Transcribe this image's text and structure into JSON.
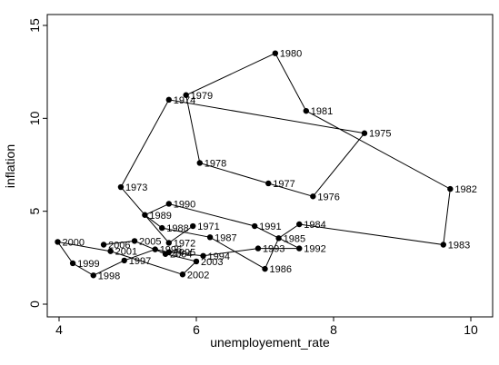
{
  "chart_data": {
    "type": "scatter",
    "xlabel": "unemployement_rate",
    "ylabel": "inflation",
    "xlim": [
      3.9,
      10.2
    ],
    "ylim": [
      -0.2,
      15.2
    ],
    "xticks": [
      4,
      6,
      8,
      10
    ],
    "yticks": [
      0,
      5,
      10,
      15
    ],
    "grid": false,
    "connected": true,
    "colors": {
      "line": "#000000",
      "marker": "#000000",
      "background": "#ffffff"
    },
    "points": [
      {
        "label": "1971",
        "x": 5.95,
        "y": 4.2
      },
      {
        "label": "1972",
        "x": 5.6,
        "y": 3.3
      },
      {
        "label": "1973",
        "x": 4.9,
        "y": 6.3
      },
      {
        "label": "1974",
        "x": 5.6,
        "y": 11.0
      },
      {
        "label": "1975",
        "x": 8.45,
        "y": 9.2
      },
      {
        "label": "1976",
        "x": 7.7,
        "y": 5.8
      },
      {
        "label": "1977",
        "x": 7.05,
        "y": 6.5
      },
      {
        "label": "1978",
        "x": 6.05,
        "y": 7.6
      },
      {
        "label": "1979",
        "x": 5.85,
        "y": 11.25
      },
      {
        "label": "1980",
        "x": 7.15,
        "y": 13.5
      },
      {
        "label": "1981",
        "x": 7.6,
        "y": 10.4
      },
      {
        "label": "1982",
        "x": 9.7,
        "y": 6.2
      },
      {
        "label": "1983",
        "x": 9.6,
        "y": 3.2
      },
      {
        "label": "1984",
        "x": 7.5,
        "y": 4.3
      },
      {
        "label": "1985",
        "x": 7.2,
        "y": 3.55
      },
      {
        "label": "1986",
        "x": 7.0,
        "y": 1.9
      },
      {
        "label": "1987",
        "x": 6.2,
        "y": 3.6
      },
      {
        "label": "1988",
        "x": 5.5,
        "y": 4.1
      },
      {
        "label": "1989",
        "x": 5.25,
        "y": 4.8
      },
      {
        "label": "1990",
        "x": 5.6,
        "y": 5.4
      },
      {
        "label": "1991",
        "x": 6.85,
        "y": 4.2
      },
      {
        "label": "1992",
        "x": 7.5,
        "y": 3.0
      },
      {
        "label": "1993",
        "x": 6.9,
        "y": 3.0
      },
      {
        "label": "1994",
        "x": 6.1,
        "y": 2.6
      },
      {
        "label": "1995",
        "x": 5.6,
        "y": 2.8
      },
      {
        "label": "1996",
        "x": 5.4,
        "y": 2.95
      },
      {
        "label": "1997",
        "x": 4.95,
        "y": 2.35
      },
      {
        "label": "1998",
        "x": 4.5,
        "y": 1.55
      },
      {
        "label": "1999",
        "x": 4.2,
        "y": 2.2
      },
      {
        "label": "2000",
        "x": 3.98,
        "y": 3.35
      },
      {
        "label": "2001",
        "x": 4.75,
        "y": 2.85
      },
      {
        "label": "2002",
        "x": 5.8,
        "y": 1.6
      },
      {
        "label": "2003",
        "x": 6.0,
        "y": 2.3
      },
      {
        "label": "2004",
        "x": 5.55,
        "y": 2.7
      },
      {
        "label": "2005",
        "x": 5.1,
        "y": 3.4
      },
      {
        "label": "2006",
        "x": 4.65,
        "y": 3.2
      }
    ]
  }
}
